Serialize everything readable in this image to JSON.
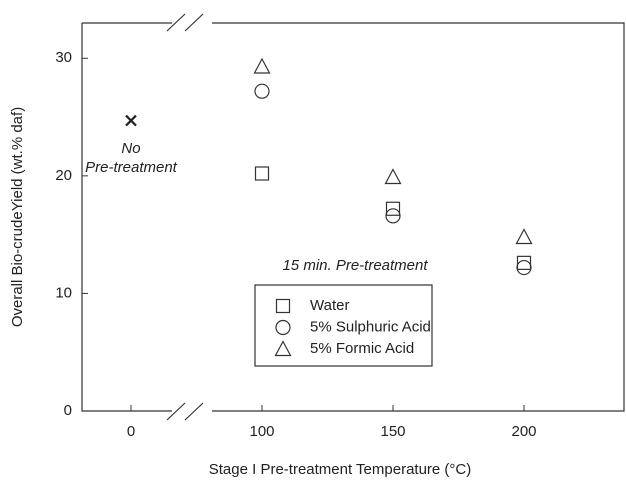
{
  "chart_data": {
    "type": "scatter",
    "x_label": "Stage I Pre-treatment Temperature (°C)",
    "y_label": "Overall Bio-crudeYield (wt.% daf)",
    "categories": [
      "0",
      "100",
      "150",
      "200"
    ],
    "ylim": [
      0,
      33
    ],
    "yticks": [
      0,
      10,
      20,
      30
    ],
    "series": [
      {
        "marker": "x",
        "color": "#222222",
        "values": [
          24.7,
          null,
          null,
          null
        ]
      },
      {
        "name": "Water",
        "marker": "square",
        "color": "#333333",
        "values": [
          null,
          20.2,
          17.2,
          12.6
        ]
      },
      {
        "name": "5% Sulphuric Acid",
        "marker": "circle",
        "color": "#333333",
        "values": [
          null,
          27.2,
          16.6,
          12.2
        ]
      },
      {
        "name": "5% Formic Acid",
        "marker": "triangle",
        "color": "#333333",
        "values": [
          null,
          29.3,
          19.9,
          14.8
        ]
      }
    ],
    "note_lines": [
      "No",
      "Pre-treatment"
    ],
    "annotation": "15 min. Pre-treatment",
    "axis_break": true
  }
}
